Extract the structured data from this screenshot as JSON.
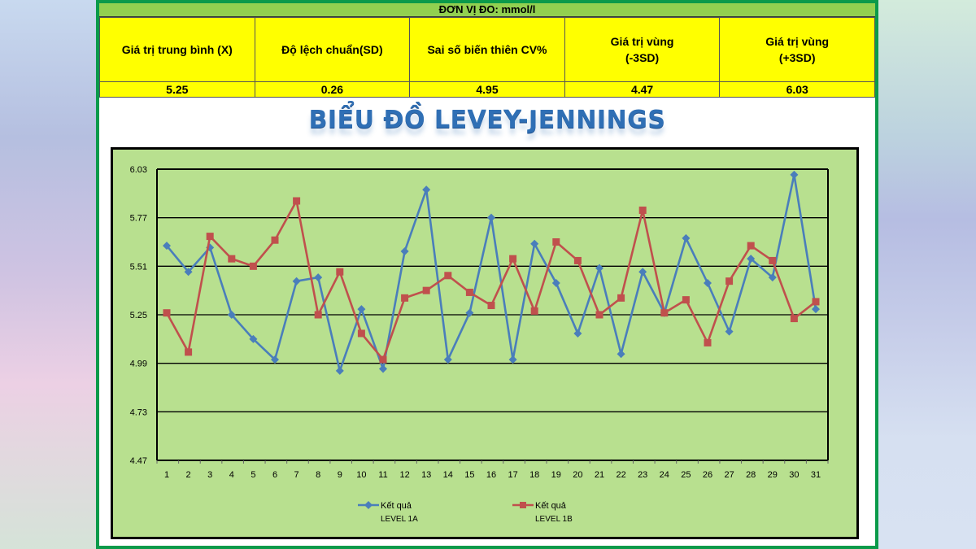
{
  "unit_label": "ĐƠN VỊ ĐO: mmol/l",
  "stats_table": {
    "headers": [
      "Giá trị trung bình (X)",
      "Độ lệch chuẩn(SD)",
      "Sai số biến thiên CV%",
      "Giá trị vùng\n(-3SD)",
      "Giá trị vùng\n(+3SD)"
    ],
    "header_lines": [
      [
        "Giá trị trung bình (X)"
      ],
      [
        "Độ lệch chuẩn(SD)"
      ],
      [
        "Sai số biến thiên CV%"
      ],
      [
        "Giá trị vùng",
        "(-3SD)"
      ],
      [
        "Giá trị vùng",
        "(+3SD)"
      ]
    ],
    "values": [
      "5.25",
      "0.26",
      "4.95",
      "4.47",
      "6.03"
    ]
  },
  "chart_title": "BIỂU ĐỒ LEVEY-JENNINGS",
  "colors": {
    "frame": "#0b9a4a",
    "unit_bar": "#92d050",
    "table_bg": "#ffff00",
    "chart_bg": "#b8e08f",
    "title": "#2f6fb5",
    "series_1a": "#4a7ebb",
    "series_1b": "#c0504d"
  },
  "chart_data": {
    "type": "line",
    "title": "BIỂU ĐỒ LEVEY-JENNINGS",
    "xlabel": "",
    "ylabel": "",
    "x": [
      1,
      2,
      3,
      4,
      5,
      6,
      7,
      8,
      9,
      10,
      11,
      12,
      13,
      14,
      15,
      16,
      17,
      18,
      19,
      20,
      21,
      22,
      23,
      24,
      25,
      26,
      27,
      28,
      29,
      30,
      31
    ],
    "y_ticks": [
      4.47,
      4.73,
      4.99,
      5.25,
      5.51,
      5.77,
      6.03
    ],
    "y_tick_labels": [
      "4.47",
      "4.73",
      "4.99",
      "5.25",
      "5.51",
      "5.77",
      "6.03"
    ],
    "ylim": [
      4.47,
      6.03
    ],
    "grid": true,
    "legend_position": "bottom",
    "series": [
      {
        "name": "Kết quả LEVEY 1A",
        "legend_line1": "Kết quả",
        "legend_line2": "LEVEL  1A",
        "marker": "diamond",
        "color": "#4a7ebb",
        "values": [
          5.62,
          5.48,
          5.61,
          5.25,
          5.12,
          5.01,
          5.43,
          5.45,
          4.95,
          5.28,
          4.96,
          5.59,
          5.92,
          5.01,
          5.26,
          5.77,
          5.01,
          5.63,
          5.42,
          5.15,
          5.5,
          5.04,
          5.48,
          5.26,
          5.66,
          5.42,
          5.16,
          5.55,
          5.45,
          6.0,
          5.28
        ]
      },
      {
        "name": "Kết quả LEVEL 1B",
        "legend_line1": "Kết quả",
        "legend_line2": "LEVEL  1B",
        "marker": "square",
        "color": "#c0504d",
        "values": [
          5.26,
          5.05,
          5.67,
          5.55,
          5.51,
          5.65,
          5.86,
          5.25,
          5.48,
          5.15,
          5.01,
          5.34,
          5.38,
          5.46,
          5.37,
          5.3,
          5.55,
          5.27,
          5.64,
          5.54,
          5.25,
          5.34,
          5.81,
          5.26,
          5.33,
          5.1,
          5.43,
          5.62,
          5.54,
          5.23,
          5.32
        ]
      }
    ]
  }
}
